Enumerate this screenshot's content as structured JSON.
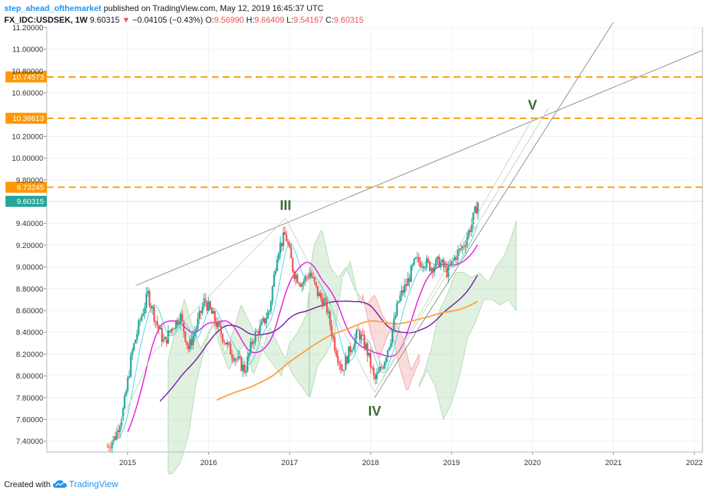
{
  "header": {
    "author": "step_ahead_ofthemarket",
    "published": "published on TradingView.com, May 12, 2019 16:45:37 UTC",
    "symbol": "FX_IDC:USDSEK, 1W",
    "last": "9.60315",
    "change": "−0.04105 (−0.43%)",
    "o_label": "O:",
    "o_value": "9.56990",
    "h_label": "H:",
    "h_value": "9.66409",
    "l_label": "L:",
    "l_value": "9.54167",
    "c_label": "C:",
    "c_value": "9.60315"
  },
  "footer": {
    "created_with": "Created with",
    "brand": "TradingView"
  },
  "colors": {
    "up": "#26a69a",
    "down": "#ef5350",
    "orange_line": "#ff9800",
    "price_label": "#26a69a",
    "ma_magenta": "#e91ee3",
    "ma_purple": "#7b1fa2",
    "ma_orange": "#ffa040",
    "cyan": "#4dd0e1",
    "trend": "#8a8a8a",
    "cloud_green": "#a5d6a7",
    "cloud_red": "#ef9a9a",
    "wave_label": "#3b6b2e"
  },
  "chart_data": {
    "type": "candlestick",
    "symbol": "FX_IDC:USDSEK",
    "timeframe": "1W",
    "ylim": [
      7.3,
      11.2
    ],
    "y_ticks": [
      "11.20000",
      "11.00000",
      "10.80000",
      "10.60000",
      "10.20000",
      "10.00000",
      "9.80000",
      "9.40000",
      "9.20000",
      "9.00000",
      "8.80000",
      "8.60000",
      "8.40000",
      "8.20000",
      "8.00000",
      "7.80000",
      "7.60000",
      "7.40000"
    ],
    "x_ticks": [
      "2015",
      "2016",
      "2017",
      "2018",
      "2019",
      "2020",
      "2021",
      "2022"
    ],
    "x_range": [
      2014.0,
      2022.1
    ],
    "price_levels": [
      {
        "label": "10.74573",
        "value": 10.74573
      },
      {
        "label": "10.36613",
        "value": 10.36613
      },
      {
        "label": "9.73245",
        "value": 9.73245
      }
    ],
    "last_price": {
      "label": "9.60315",
      "value": 9.60315
    },
    "wave_labels": [
      {
        "text": "III",
        "x": 2016.95,
        "y": 9.45
      },
      {
        "text": "IV",
        "x": 2018.05,
        "y": 7.8
      },
      {
        "text": "V",
        "x": 2020.0,
        "y": 10.37
      }
    ],
    "close_series": [
      [
        2014.75,
        7.35
      ],
      [
        2014.85,
        7.45
      ],
      [
        2014.95,
        7.7
      ],
      [
        2015.05,
        8.2
      ],
      [
        2015.15,
        8.5
      ],
      [
        2015.25,
        8.75
      ],
      [
        2015.35,
        8.5
      ],
      [
        2015.45,
        8.3
      ],
      [
        2015.55,
        8.45
      ],
      [
        2015.65,
        8.55
      ],
      [
        2015.75,
        8.25
      ],
      [
        2015.85,
        8.45
      ],
      [
        2015.95,
        8.7
      ],
      [
        2016.05,
        8.55
      ],
      [
        2016.15,
        8.4
      ],
      [
        2016.25,
        8.25
      ],
      [
        2016.35,
        8.15
      ],
      [
        2016.45,
        8.05
      ],
      [
        2016.55,
        8.35
      ],
      [
        2016.65,
        8.45
      ],
      [
        2016.75,
        8.6
      ],
      [
        2016.85,
        9.15
      ],
      [
        2016.95,
        9.3
      ],
      [
        2017.05,
        8.95
      ],
      [
        2017.15,
        8.85
      ],
      [
        2017.25,
        8.95
      ],
      [
        2017.35,
        8.75
      ],
      [
        2017.45,
        8.65
      ],
      [
        2017.55,
        8.3
      ],
      [
        2017.65,
        8.05
      ],
      [
        2017.75,
        8.25
      ],
      [
        2017.85,
        8.4
      ],
      [
        2017.95,
        8.25
      ],
      [
        2018.05,
        7.95
      ],
      [
        2018.15,
        8.1
      ],
      [
        2018.25,
        8.35
      ],
      [
        2018.35,
        8.7
      ],
      [
        2018.45,
        8.85
      ],
      [
        2018.55,
        9.05
      ],
      [
        2018.65,
        9.05
      ],
      [
        2018.75,
        9.0
      ],
      [
        2018.85,
        9.05
      ],
      [
        2018.95,
        8.95
      ],
      [
        2019.05,
        9.1
      ],
      [
        2019.15,
        9.2
      ],
      [
        2019.25,
        9.4
      ],
      [
        2019.33,
        9.60315
      ]
    ]
  }
}
